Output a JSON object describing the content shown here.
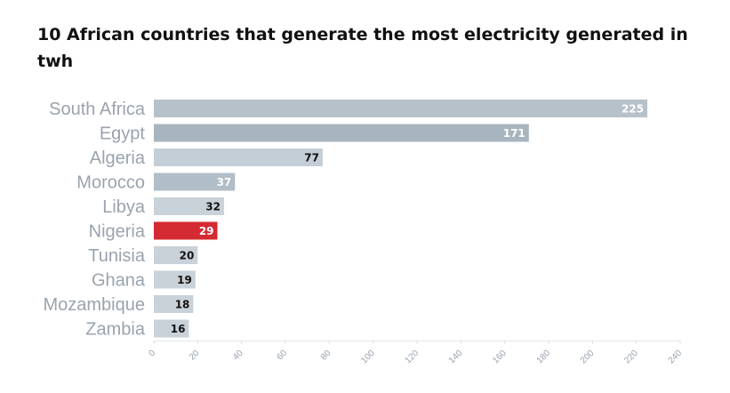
{
  "chart_data": {
    "type": "bar",
    "orientation": "horizontal",
    "title": "10 African countries that generate the most electricity generated in twh",
    "categories": [
      "South Africa",
      "Egypt",
      "Algeria",
      "Morocco",
      "Libya",
      "Nigeria",
      "Tunisia",
      "Ghana",
      "Mozambique",
      "Zambia"
    ],
    "values": [
      225,
      171,
      77,
      37,
      32,
      29,
      20,
      19,
      18,
      16
    ],
    "xlim": [
      0,
      240
    ],
    "xticks": [
      0,
      20,
      40,
      60,
      80,
      100,
      120,
      140,
      160,
      180,
      200,
      220,
      240
    ],
    "grid": false,
    "legend": false,
    "colors": {
      "default": [
        "#b6c1ca",
        "#a8b5bf",
        "#c4ced6",
        "#b1bdc7",
        "#c9d2d9",
        "#d42b32",
        "#c9d2d9",
        "#c9d2d9",
        "#c9d2d9",
        "#c9d2d9"
      ],
      "highlight_category": "Nigeria",
      "value_label_light": "#ffffff",
      "value_label_dark": "#111111"
    },
    "value_label_colors": [
      "light",
      "light",
      "dark",
      "light",
      "dark",
      "light",
      "dark",
      "dark",
      "dark",
      "dark"
    ]
  }
}
